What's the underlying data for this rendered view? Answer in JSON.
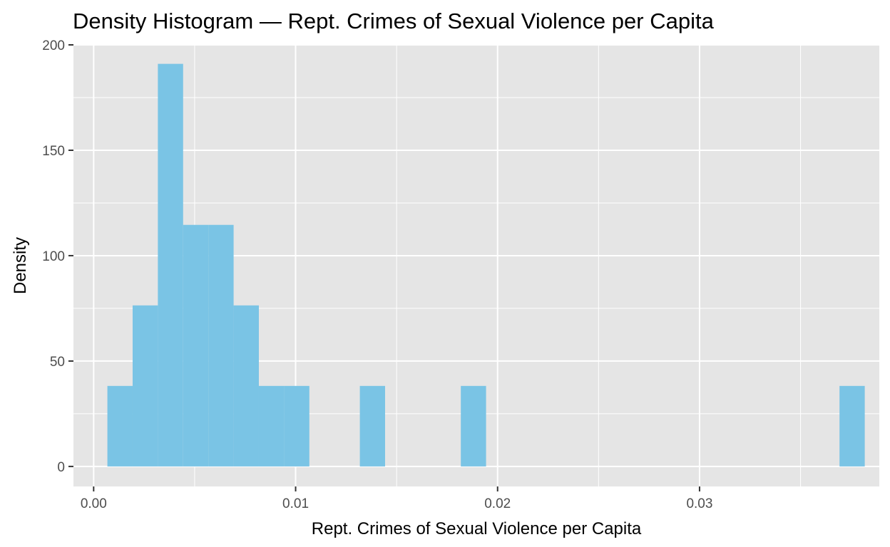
{
  "chart_data": {
    "type": "bar",
    "title": "Density Histogram — Rept. Crimes of Sexual Violence per Capita",
    "xlabel": "Rept. Crimes of Sexual Violence per Capita",
    "ylabel": "Density",
    "xlim": [
      -0.001,
      0.0389
    ],
    "ylim": [
      -9.5,
      200
    ],
    "x_ticks": [
      0.0,
      0.01,
      0.02,
      0.03
    ],
    "x_tick_labels": [
      "0.00",
      "0.01",
      "0.02",
      "0.03"
    ],
    "y_ticks": [
      0,
      50,
      100,
      150,
      200
    ],
    "y_tick_labels": [
      "0",
      "50",
      "100",
      "150",
      "200"
    ],
    "x_minor": [
      0.005,
      0.015,
      0.025,
      0.035
    ],
    "y_minor": [
      25,
      75,
      125,
      175
    ],
    "grid": true,
    "colors": {
      "bar": "#7ac4e5",
      "panel": "#e5e5e5",
      "grid": "#ffffff",
      "tick": "#333333"
    },
    "bins": [
      {
        "x0": 0.00068,
        "x1": 0.00193,
        "density": 38.2
      },
      {
        "x0": 0.00193,
        "x1": 0.00318,
        "density": 76.4
      },
      {
        "x0": 0.00318,
        "x1": 0.00443,
        "density": 191
      },
      {
        "x0": 0.00443,
        "x1": 0.00568,
        "density": 114.6
      },
      {
        "x0": 0.00568,
        "x1": 0.00693,
        "density": 114.6
      },
      {
        "x0": 0.00693,
        "x1": 0.00818,
        "density": 76.4
      },
      {
        "x0": 0.00818,
        "x1": 0.00943,
        "density": 38.2
      },
      {
        "x0": 0.00943,
        "x1": 0.01068,
        "density": 38.2
      },
      {
        "x0": 0.01318,
        "x1": 0.01443,
        "density": 38.2
      },
      {
        "x0": 0.01818,
        "x1": 0.01943,
        "density": 38.2
      },
      {
        "x0": 0.03693,
        "x1": 0.03818,
        "density": 38.2
      }
    ]
  }
}
